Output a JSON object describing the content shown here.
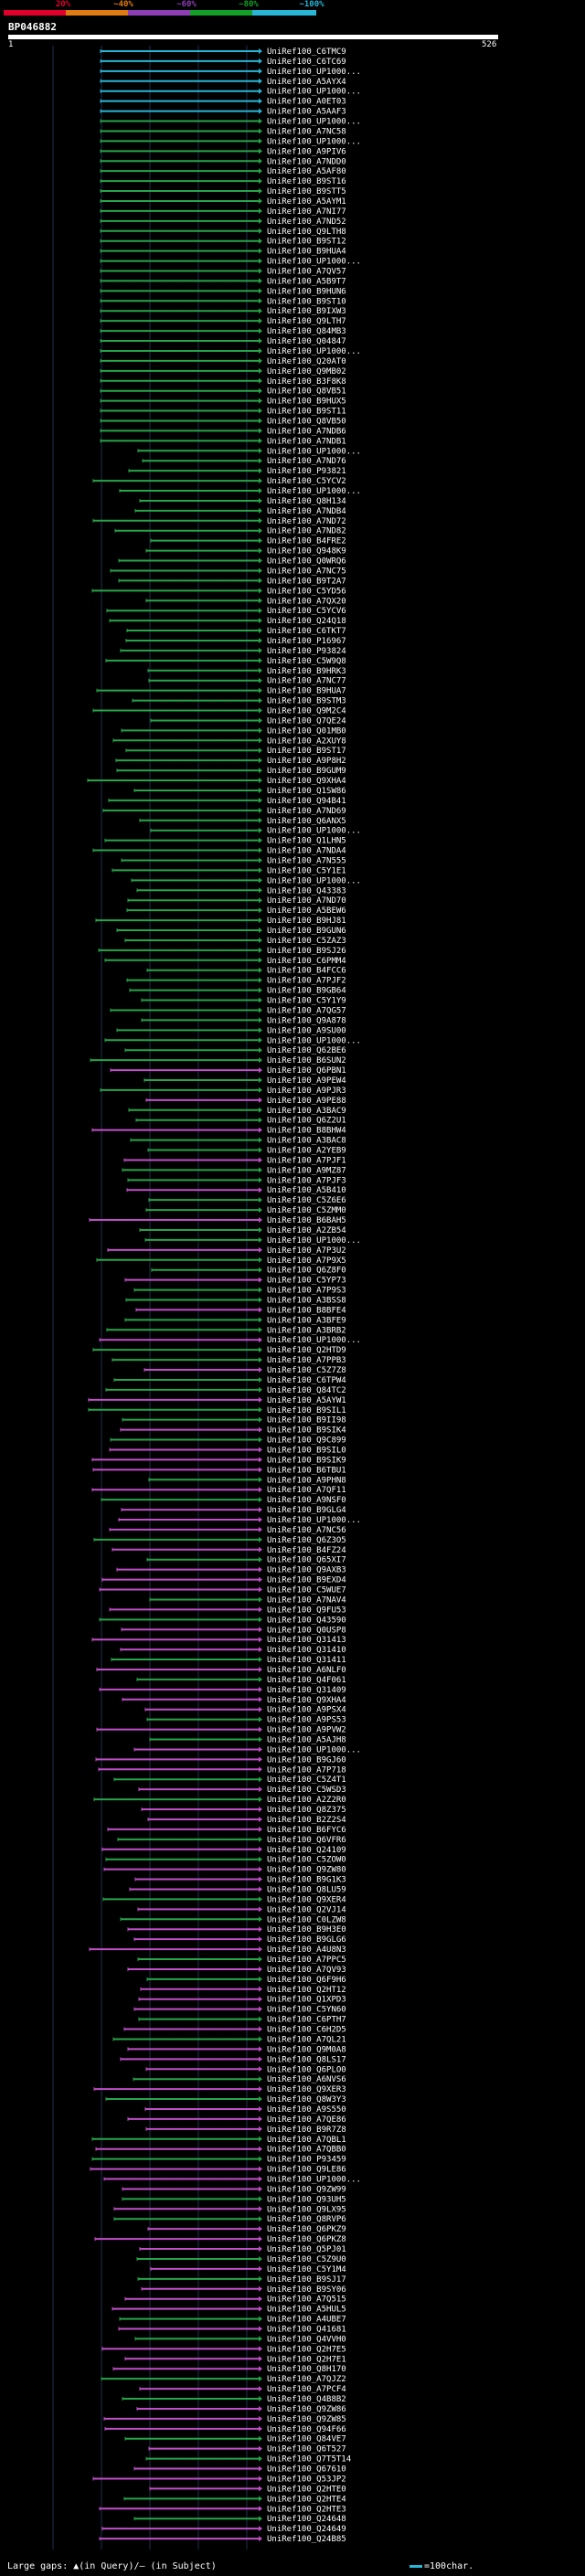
{
  "scale": {
    "labels": [
      "20%",
      "~40%",
      "~60%",
      "~80%",
      "~100%"
    ],
    "segments": [
      {
        "color": "#e0002b"
      },
      {
        "color": "#e07b12"
      },
      {
        "color": "#8c3fb4"
      },
      {
        "color": "#14a028"
      },
      {
        "color": "#29b6d6"
      }
    ]
  },
  "query": {
    "name": "BP046882",
    "start": "1",
    "end": "526"
  },
  "colors": {
    "cyan": "#29b6d6",
    "green": "#27a54a",
    "magenta": "#c14fc8",
    "grid": "#22304a"
  },
  "hits": [
    "UniRef100_C6TMC9",
    "UniRef100_C6TC69",
    "UniRef100_UP1000...",
    "UniRef100_A5AYX4",
    "UniRef100_UP1000...",
    "UniRef100_A0ET03",
    "UniRef100_A5AAF3",
    "UniRef100_UP1000...",
    "UniRef100_A7NC58",
    "UniRef100_UP1000...",
    "UniRef100_A9PIV6",
    "UniRef100_A7NDD0",
    "UniRef100_A5AF80",
    "UniRef100_B9ST16",
    "UniRef100_B9STT5",
    "UniRef100_A5AYM1",
    "UniRef100_A7NI77",
    "UniRef100_A7ND52",
    "UniRef100_Q9LTH8",
    "UniRef100_B9ST12",
    "UniRef100_B9HUA4",
    "UniRef100_UP1000...",
    "UniRef100_A7QV57",
    "UniRef100_A5B9T7",
    "UniRef100_B9HUN6",
    "UniRef100_B9ST10",
    "UniRef100_B9IXW3",
    "UniRef100_Q9LTH7",
    "UniRef100_Q84MB3",
    "UniRef100_Q04847",
    "UniRef100_UP1000...",
    "UniRef100_Q20AT0",
    "UniRef100_Q9MB02",
    "UniRef100_B3F8K8",
    "UniRef100_Q8VB51",
    "UniRef100_B9HUX5",
    "UniRef100_B9ST11",
    "UniRef100_Q8VB50",
    "UniRef100_A7NDB6",
    "UniRef100_A7NDB1",
    "UniRef100_UP1000...",
    "UniRef100_A7ND76",
    "UniRef100_P93821",
    "UniRef100_C5YCV2",
    "UniRef100_UP1000...",
    "UniRef100_Q8H134",
    "UniRef100_A7NDB4",
    "UniRef100_A7ND72",
    "UniRef100_A7ND82",
    "UniRef100_B4FRE2",
    "UniRef100_Q948K9",
    "UniRef100_Q0WRQ6",
    "UniRef100_A7NC75",
    "UniRef100_B9T2A7",
    "UniRef100_C5YD56",
    "UniRef100_A7QX20",
    "UniRef100_C5YCV6",
    "UniRef100_Q24Q18",
    "UniRef100_C6TKT7",
    "UniRef100_P16967",
    "UniRef100_P93824",
    "UniRef100_C5W9Q8",
    "UniRef100_B9HRK3",
    "UniRef100_A7NC77",
    "UniRef100_B9HUA7",
    "UniRef100_B9STM3",
    "UniRef100_Q9M2C4",
    "UniRef100_Q7QE24",
    "UniRef100_Q01MB0",
    "UniRef100_A2XUY8",
    "UniRef100_B9ST17",
    "UniRef100_A9P8H2",
    "UniRef100_B9GUM9",
    "UniRef100_Q9XHA4",
    "UniRef100_Q1SW86",
    "UniRef100_Q94B41",
    "UniRef100_A7ND69",
    "UniRef100_Q6ANX5",
    "UniRef100_UP1000...",
    "UniRef100_Q1LHN5",
    "UniRef100_A7NDA4",
    "UniRef100_A7N555",
    "UniRef100_C5Y1E1",
    "UniRef100_UP1000...",
    "UniRef100_Q43383",
    "UniRef100_A7ND70",
    "UniRef100_A5BEW6",
    "UniRef100_B9HJ81",
    "UniRef100_B9GUN6",
    "UniRef100_C5ZAZ3",
    "UniRef100_B9SJ26",
    "UniRef100_C6PMM4",
    "UniRef100_B4FCC6",
    "UniRef100_A7PJF2",
    "UniRef100_B9GB64",
    "UniRef100_C5Y1Y9",
    "UniRef100_A7QG57",
    "UniRef100_Q9A878",
    "UniRef100_A9SU00",
    "UniRef100_UP1000...",
    "UniRef100_Q62BE6",
    "UniRef100_B6SUN2",
    "UniRef100_Q6PBN1",
    "UniRef100_A9PEW4",
    "UniRef100_A9PJR3",
    "UniRef100_A9PE88",
    "UniRef100_A3BAC9",
    "UniRef100_Q6Z2U1",
    "UniRef100_B8BHW4",
    "UniRef100_A3BAC8",
    "UniRef100_A2YEB9",
    "UniRef100_A7PJF1",
    "UniRef100_A9MZ87",
    "UniRef100_A7PJF3",
    "UniRef100_A5B410",
    "UniRef100_C5Z6E6",
    "UniRef100_C5ZMM0",
    "UniRef100_B6BAH5",
    "UniRef100_A2ZB54",
    "UniRef100_UP1000...",
    "UniRef100_A7P3U2",
    "UniRef100_A7P9X5",
    "UniRef100_Q6Z8F0",
    "UniRef100_C5YP73",
    "UniRef100_A7P9S3",
    "UniRef100_A3BSS8",
    "UniRef100_B8BFE4",
    "UniRef100_A3BFE9",
    "UniRef100_A3BRB2",
    "UniRef100_UP1000...",
    "UniRef100_Q2HTD9",
    "UniRef100_A7PPB3",
    "UniRef100_C5Z7Z8",
    "UniRef100_C6TPW4",
    "UniRef100_Q84TC2",
    "UniRef100_A5AYW1",
    "UniRef100_B9SIL1",
    "UniRef100_B9II98",
    "UniRef100_B9SIK4",
    "UniRef100_Q9C899",
    "UniRef100_B9SIL0",
    "UniRef100_B9SIK9",
    "UniRef100_B6TBU1",
    "UniRef100_A9PHN8",
    "UniRef100_A7QF11",
    "UniRef100_A9NSF0",
    "UniRef100_B9GLG4",
    "UniRef100_UP1000...",
    "UniRef100_A7NC56",
    "UniRef100_Q6Z3O5",
    "UniRef100_B4FZ24",
    "UniRef100_Q65XI7",
    "UniRef100_Q9AXB3",
    "UniRef100_B9EXD4",
    "UniRef100_C5WUE7",
    "UniRef100_A7NAV4",
    "UniRef100_Q9FU53",
    "UniRef100_Q43590",
    "UniRef100_Q0USP8",
    "UniRef100_Q31413",
    "UniRef100_Q31410",
    "UniRef100_Q31411",
    "UniRef100_A6NLF0",
    "UniRef100_Q4F061",
    "UniRef100_Q31409",
    "UniRef100_Q9XHA4",
    "UniRef100_A9PSX4",
    "UniRef100_A9PS53",
    "UniRef100_A9PVW2",
    "UniRef100_A5AJH8",
    "UniRef100_UP1000...",
    "UniRef100_B9GJ60",
    "UniRef100_A7P718",
    "UniRef100_C5Z4T1",
    "UniRef100_C5WSD3",
    "UniRef100_A2Z2R0",
    "UniRef100_Q8Z375",
    "UniRef100_B2Z2S4",
    "UniRef100_B6FYC6",
    "UniRef100_Q6VFR6",
    "UniRef100_Q24109",
    "UniRef100_C5ZOW0",
    "UniRef100_Q9ZW80",
    "UniRef100_B9G1K3",
    "UniRef100_Q8LU59",
    "UniRef100_Q9XER4",
    "UniRef100_Q2VJ14",
    "UniRef100_C0LZW8",
    "UniRef100_B9H3E0",
    "UniRef100_B9GLG6",
    "UniRef100_A4U8N3",
    "UniRef100_A7PPC5",
    "UniRef100_A7QV93",
    "UniRef100_Q6F9H6",
    "UniRef100_Q2HT12",
    "UniRef100_Q1XPD3",
    "UniRef100_C5YN60",
    "UniRef100_C6PTH7",
    "UniRef100_C6H2D5",
    "UniRef100_A7QL21",
    "UniRef100_Q9M0A8",
    "UniRef100_Q8LS17",
    "UniRef100_Q6PLO0",
    "UniRef100_A6NVS6",
    "UniRef100_Q9XER3",
    "UniRef100_Q8W3Y3",
    "UniRef100_A9S550",
    "UniRef100_A7QE86",
    "UniRef100_B9R7Z8",
    "UniRef100_A7QBL1",
    "UniRef100_A7QBB0",
    "UniRef100_P93459",
    "UniRef100_Q9LE86",
    "UniRef100_UP1000...",
    "UniRef100_Q9ZW99",
    "UniRef100_Q93UH5",
    "UniRef100_Q9LX95",
    "UniRef100_Q8RVP6",
    "UniRef100_Q6PKZ9",
    "UniRef100_Q6PKZ8",
    "UniRef100_Q5PJ01",
    "UniRef100_C5Z9U0",
    "UniRef100_C5Y1M4",
    "UniRef100_B9SJ17",
    "UniRef100_B9SY06",
    "UniRef100_A7Q515",
    "UniRef100_A5HUL5",
    "UniRef100_A4UBE7",
    "UniRef100_Q41681",
    "UniRef100_Q4VVH0",
    "UniRef100_Q2H7E5",
    "UniRef100_Q2H7E1",
    "UniRef100_Q8H170",
    "UniRef100_A7QJZ2",
    "UniRef100_A7PCF4",
    "UniRef100_Q4B8B2",
    "UniRef100_Q9ZW86",
    "UniRef100_Q9ZW85",
    "UniRef100_Q94F66",
    "UniRef100_Q84VE7",
    "UniRef100_Q6T527",
    "UniRef100_Q7T5T14",
    "UniRef100_Q67610",
    "UniRef100_Q53JP2",
    "UniRef100_Q2HTE0",
    "UniRef100_Q2HTE4",
    "UniRef100_Q2HTE3",
    "UniRef100_Q24648",
    "UniRef100_Q24649",
    "UniRef100_Q24B85"
  ],
  "footer": {
    "legend_left": "Large gaps: ▲(in Query)/– (in Subject)",
    "legend_right": "=100char."
  }
}
